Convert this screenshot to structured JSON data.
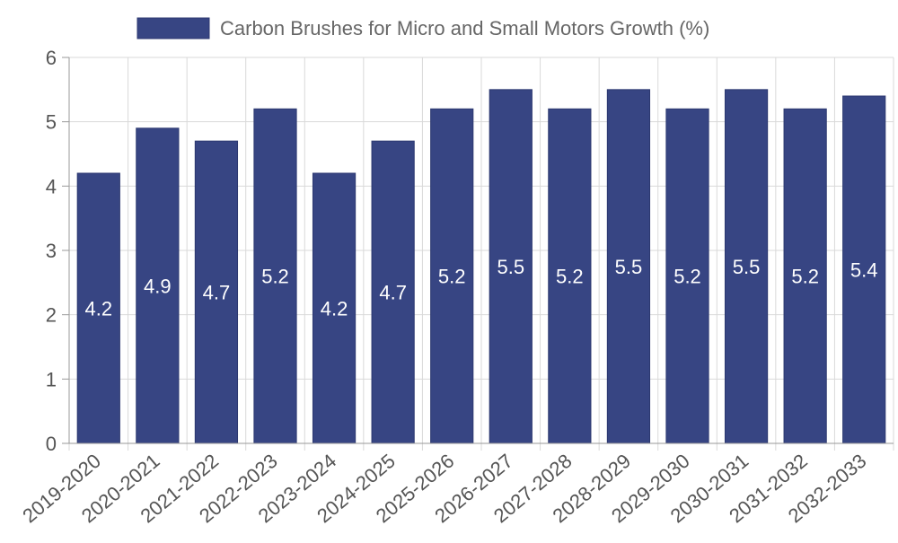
{
  "chart_data": {
    "type": "bar",
    "title": "",
    "xlabel": "",
    "ylabel": "",
    "legend": {
      "position": "top-center",
      "label": "Carbon Brushes for Micro and Small Motors Growth (%)"
    },
    "categories": [
      "2019-2020",
      "2020-2021",
      "2021-2022",
      "2022-2023",
      "2023-2024",
      "2024-2025",
      "2025-2026",
      "2026-2027",
      "2027-2028",
      "2028-2029",
      "2029-2030",
      "2030-2031",
      "2031-2032",
      "2032-2033"
    ],
    "series": [
      {
        "name": "Carbon Brushes for Micro and Small Motors Growth (%)",
        "values": [
          4.2,
          4.9,
          4.7,
          5.2,
          4.2,
          4.7,
          5.2,
          5.5,
          5.2,
          5.5,
          5.2,
          5.5,
          5.2,
          5.4
        ],
        "color": "#374583"
      }
    ],
    "ylim": [
      0,
      6
    ],
    "yticks": [
      "0",
      "1",
      "2",
      "3",
      "4",
      "5",
      "6"
    ],
    "grid": true,
    "data_labels": true,
    "colors": {
      "bar": "#374583",
      "bar_border": "#2c3870",
      "grid": "#d9d9d9",
      "axis": "#999999",
      "tick_text": "#555555",
      "legend_text": "#666666",
      "data_label": "#ffffff"
    }
  }
}
